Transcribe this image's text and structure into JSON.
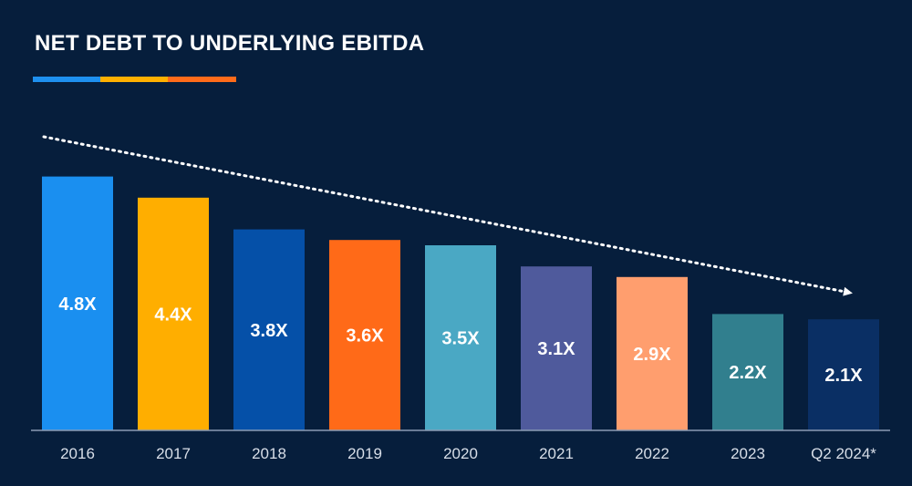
{
  "page": {
    "title": "NET DEBT TO UNDERLYING EBITDA",
    "accent_colors": [
      "#1e90ef",
      "#ffb000",
      "#ff6b1a"
    ]
  },
  "chart_data": {
    "type": "bar",
    "title": "NET DEBT TO UNDERLYING EBITDA",
    "categories": [
      "2016",
      "2017",
      "2018",
      "2019",
      "2020",
      "2021",
      "2022",
      "2023",
      "Q2 2024*"
    ],
    "values": [
      4.8,
      4.4,
      3.8,
      3.6,
      3.5,
      3.1,
      2.9,
      2.2,
      2.1
    ],
    "data_labels": [
      "4.8X",
      "4.4X",
      "3.8X",
      "3.6X",
      "3.5X",
      "3.1X",
      "2.9X",
      "2.2X",
      "2.1X"
    ],
    "bar_colors": [
      "#1a8ff0",
      "#ffae00",
      "#0550a8",
      "#ff6a18",
      "#4aa8c4",
      "#4f5a9c",
      "#ff9e6e",
      "#317f8e",
      "#0a2f64"
    ],
    "ylim": [
      0,
      5
    ],
    "xlabel": "",
    "ylabel": "",
    "grid": false,
    "trend_arrow": "dotted, downward to the right",
    "colors": {
      "background": "#061e3c",
      "axis": "#8c9cb4",
      "text": "#ffffff",
      "tick_text": "#d8dee8"
    }
  }
}
